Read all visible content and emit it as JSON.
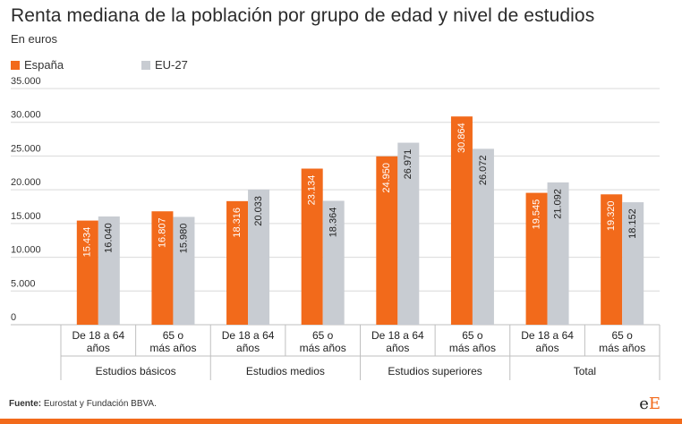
{
  "title": "Renta mediana de la población por grupo de edad y nivel de estudios",
  "subtitle": "En euros",
  "footer": {
    "source_label": "Fuente:",
    "source_text": "Eurostat y Fundación BBVA."
  },
  "logo": {
    "e1": "e",
    "e2": "E"
  },
  "colors": {
    "espana": "#f26a1b",
    "eu27": "#c8ccd2",
    "grid": "#d9d9d9"
  },
  "chart_data": {
    "type": "bar",
    "title": "Renta mediana de la población por grupo de edad y nivel de estudios",
    "ylabel": "En euros",
    "ylim": [
      0,
      35000
    ],
    "yticks": [
      0,
      5000,
      10000,
      15000,
      20000,
      25000,
      30000,
      35000
    ],
    "ytick_labels": [
      "0",
      "5.000",
      "10.000",
      "15.000",
      "20.000",
      "25.000",
      "30.000",
      "35.000"
    ],
    "groups": [
      {
        "name": "Estudios básicos",
        "categories": [
          "De 18 a 64 años",
          "65 o más años"
        ]
      },
      {
        "name": "Estudios medios",
        "categories": [
          "De 18 a 64 años",
          "65 o más años"
        ]
      },
      {
        "name": "Estudios superiores",
        "categories": [
          "De 18 a 64 años",
          "65 o más años"
        ]
      },
      {
        "name": "Total",
        "categories": [
          "De 18 a 64 años",
          "65 o más años"
        ]
      }
    ],
    "category_labels": [
      [
        "De 18 a 64",
        "años"
      ],
      [
        "65 o",
        "más años"
      ],
      [
        "De 18 a 64",
        "años"
      ],
      [
        "65 o",
        "más años"
      ],
      [
        "De 18 a 64",
        "años"
      ],
      [
        "65 o",
        "más años"
      ],
      [
        "De 18 a 64",
        "años"
      ],
      [
        "65 o",
        "más años"
      ]
    ],
    "series": [
      {
        "name": "España",
        "values": [
          15434,
          16807,
          18316,
          23134,
          24950,
          30864,
          19545,
          19320
        ],
        "labels": [
          "15.434",
          "16.807",
          "18.316",
          "23.134",
          "24.950",
          "30.864",
          "19.545",
          "19.320"
        ]
      },
      {
        "name": "EU-27",
        "values": [
          16040,
          15980,
          20033,
          18364,
          26971,
          26072,
          21092,
          18152
        ],
        "labels": [
          "16.040",
          "15.980",
          "20.033",
          "18.364",
          "26.971",
          "26.072",
          "21.092",
          "18.152"
        ]
      }
    ],
    "legend": [
      "España",
      "EU-27"
    ]
  }
}
